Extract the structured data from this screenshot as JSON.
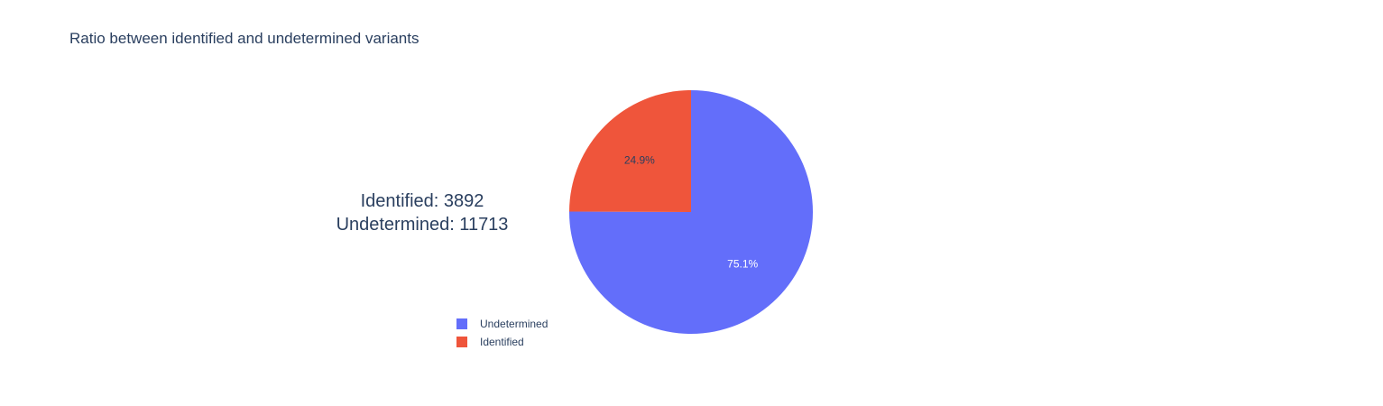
{
  "chart_data": {
    "type": "pie",
    "title": "Ratio between identified and undetermined variants",
    "slices": [
      {
        "label": "Undetermined",
        "value": 11713,
        "percent_label": "75.1%",
        "color": "#636efa",
        "text_color": "#ffffff"
      },
      {
        "label": "Identified",
        "value": 3892,
        "percent_label": "24.9%",
        "color": "#ef553b",
        "text_color": "#2a3f5f"
      }
    ],
    "annotation": {
      "line1": "Identified: 3892",
      "line2": "Undetermined: 11713"
    },
    "legend": {
      "placement": "bottom-left",
      "items": [
        {
          "label": "Undetermined",
          "color": "#636efa"
        },
        {
          "label": "Identified",
          "color": "#ef553b"
        }
      ]
    }
  }
}
